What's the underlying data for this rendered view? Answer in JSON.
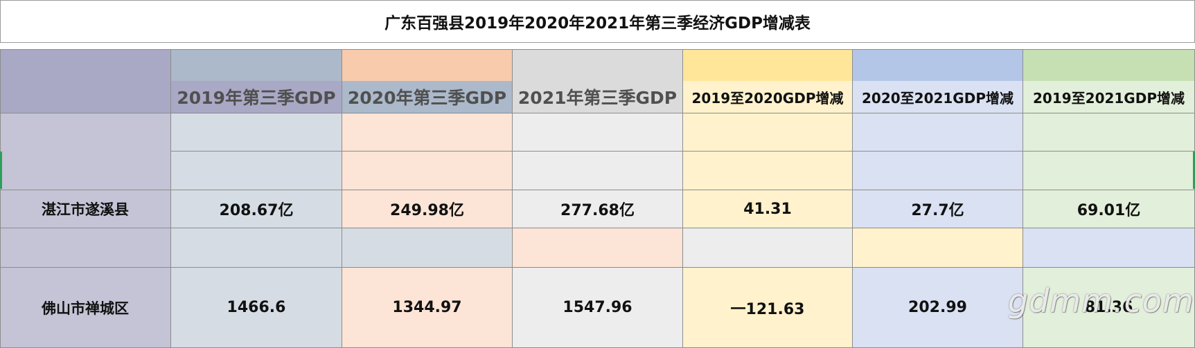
{
  "title": "广东百强县2019年2020年2021年第三季经济GDP增减表",
  "headers": [
    "2019年第三季GDP",
    "2020年第三季GDP",
    "2021年第三季GDP",
    "2019至2020GDP增减",
    "2020至2021GDP增减",
    "2019至2021GDP增减"
  ],
  "rows": [
    {
      "name": "湛江市遂溪县",
      "values": [
        "208.67亿",
        "249.98亿",
        "277.68亿",
        "41.31",
        "27.7亿",
        "69.01亿"
      ]
    },
    {
      "name": "佛山市禅城区",
      "values": [
        "1466.6",
        "1344.97",
        "1547.96",
        "一121.63",
        "202.99",
        "81.36"
      ]
    }
  ],
  "watermark": "gdmm.com",
  "colors": {
    "label_column": "#c4c4d6",
    "label_header": "#a9a9c6",
    "col1": "#d6dce4",
    "col2": "#fce4d6",
    "col3": "#ededed",
    "col4": "#fff2cc",
    "col5": "#d9e1f2",
    "col6": "#e2efda"
  }
}
